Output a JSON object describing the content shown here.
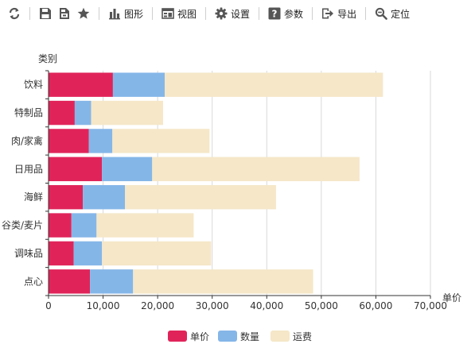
{
  "toolbar": {
    "refresh_icon": "refresh-icon",
    "save_icon": "save-icon",
    "save_as_icon": "save-as-icon",
    "favorite_icon": "star-icon",
    "chart_label": "图形",
    "view_label": "视图",
    "settings_label": "设置",
    "params_label": "参数",
    "export_label": "导出",
    "locate_label": "定位"
  },
  "chart_data": {
    "type": "bar",
    "orientation": "horizontal",
    "stacked": true,
    "title": "",
    "ylabel": "类别",
    "xlabel": "单价",
    "categories": [
      "饮料",
      "特制品",
      "肉/家禽",
      "日用品",
      "海鲜",
      "谷类/麦片",
      "调味品",
      "点心"
    ],
    "series": [
      {
        "name": "单价",
        "color": "#e0245a",
        "values": [
          11800,
          4800,
          7400,
          9800,
          6300,
          4200,
          4600,
          7600
        ]
      },
      {
        "name": "数量",
        "color": "#85b6e8",
        "values": [
          9500,
          3000,
          4300,
          9200,
          7700,
          4600,
          5200,
          7900
        ]
      },
      {
        "name": "运费",
        "color": "#f5e7c8",
        "values": [
          40000,
          13200,
          17800,
          38000,
          27700,
          17800,
          20000,
          33000
        ]
      }
    ],
    "xlim": [
      0,
      70000
    ],
    "xticks": [
      0,
      10000,
      20000,
      30000,
      40000,
      50000,
      60000,
      70000
    ],
    "xtick_labels": [
      "0",
      "10,000",
      "20,000",
      "30,000",
      "40,000",
      "50,000",
      "60,000",
      "70,000"
    ],
    "grid": true,
    "legend_position": "bottom"
  }
}
